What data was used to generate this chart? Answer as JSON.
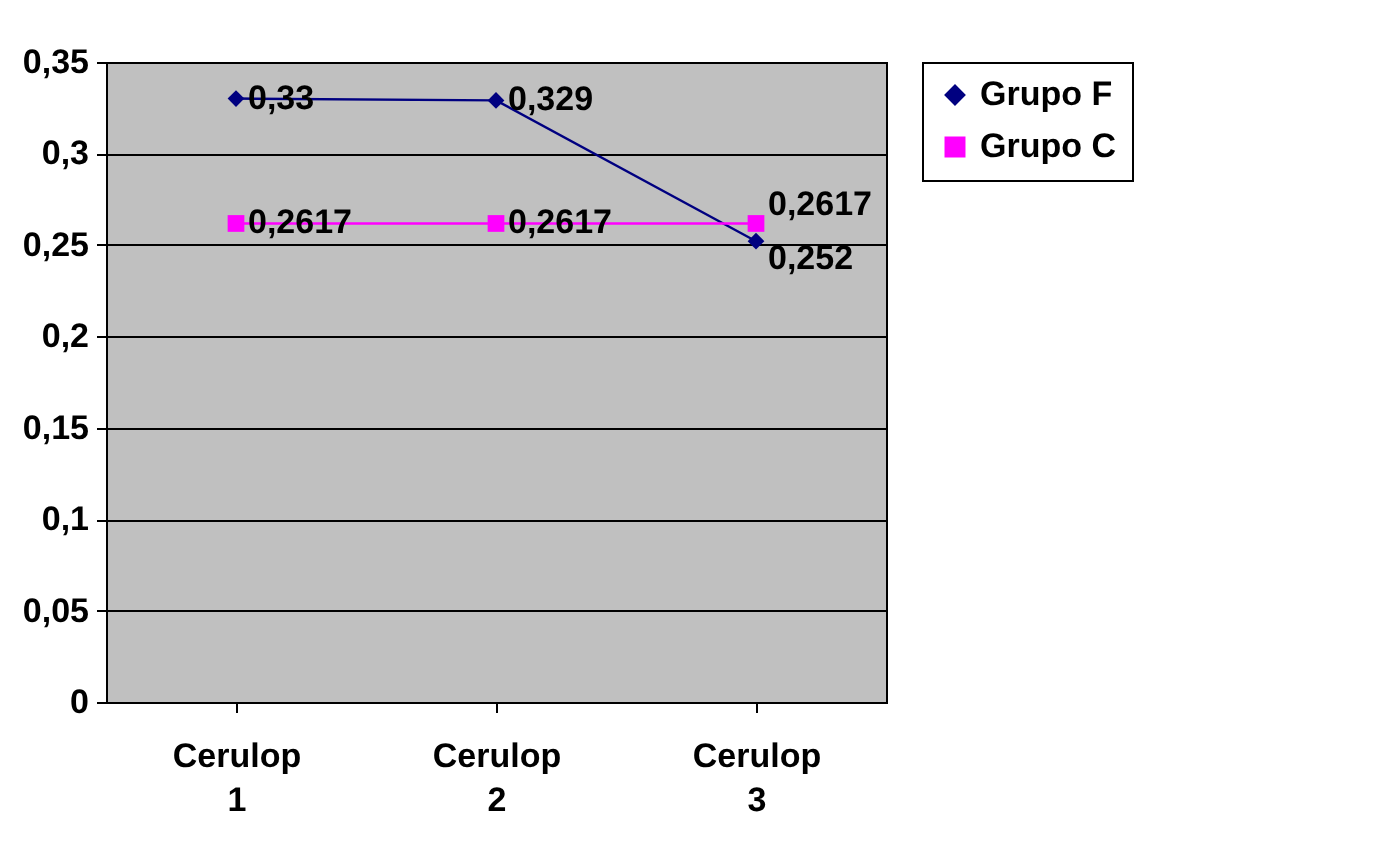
{
  "chart_data": {
    "type": "line",
    "categories": [
      "Cerulop 1",
      "Cerulop 2",
      "Cerulop 3"
    ],
    "series": [
      {
        "name": "Grupo F",
        "color": "#000080",
        "marker": "diamond",
        "values": [
          0.33,
          0.329,
          0.252
        ],
        "value_labels": [
          "0,33",
          "0,329",
          "0,252"
        ]
      },
      {
        "name": "Grupo C",
        "color": "#ff00ff",
        "marker": "square",
        "values": [
          0.2617,
          0.2617,
          0.2617
        ],
        "value_labels": [
          "0,2617",
          "0,2617",
          "0,2617"
        ]
      }
    ],
    "ylim": [
      0,
      0.35
    ],
    "yticks": [
      0,
      {
        "value": 0.05,
        "label": "0,05"
      },
      {
        "value": 0.1,
        "label": "0,1"
      },
      {
        "value": 0.15,
        "label": "0,15"
      },
      {
        "value": 0.2,
        "label": "0,2"
      },
      {
        "value": 0.25,
        "label": "0,25"
      },
      {
        "value": 0.3,
        "label": "0,3"
      },
      {
        "value": 0.35,
        "label": "0,35"
      }
    ],
    "grid": "y",
    "legend": "right",
    "line_style": "solid"
  }
}
